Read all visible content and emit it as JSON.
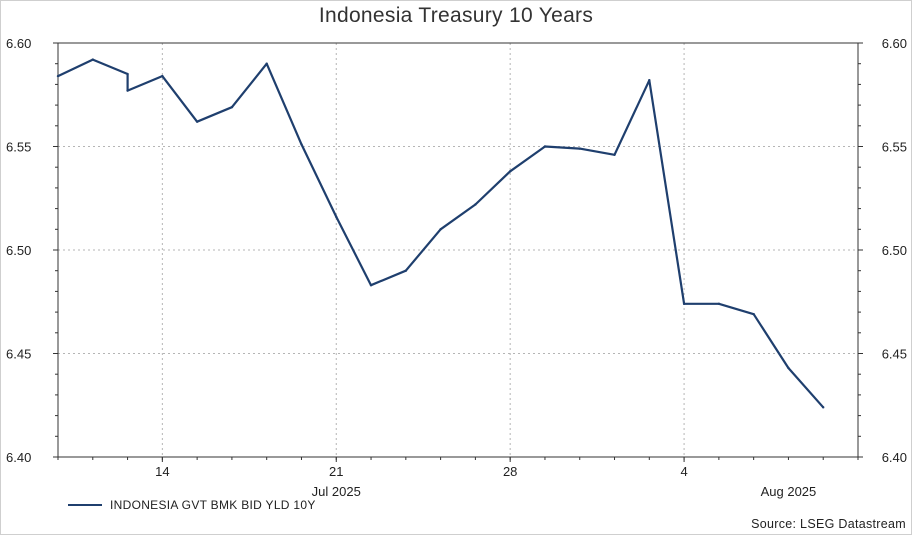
{
  "chart_data": {
    "type": "line",
    "title": "Indonesia Treasury 10 Years",
    "y_ticks": [
      "6.40",
      "6.45",
      "6.50",
      "6.55",
      "6.60"
    ],
    "ylim": [
      6.4,
      6.6
    ],
    "x_ticks": [
      {
        "label": "14",
        "date": "2025-07-14"
      },
      {
        "label": "21",
        "date": "2025-07-21"
      },
      {
        "label": "28",
        "date": "2025-07-28"
      },
      {
        "label": "4",
        "date": "2025-08-04"
      }
    ],
    "month_labels": [
      {
        "label": "Jul 2025",
        "date": "2025-07-21"
      },
      {
        "label": "Aug 2025",
        "date": "2025-08-07"
      }
    ],
    "xlim": [
      "2025-07-09",
      "2025-08-11"
    ],
    "grid": true,
    "legend_position": "bottom-left",
    "series": [
      {
        "name": "INDONESIA GVT BMK BID YLD 10Y",
        "color": "#1f3f6e",
        "points": [
          {
            "x": "2025-07-09",
            "y": 6.584
          },
          {
            "x": "2025-07-10",
            "y": 6.592
          },
          {
            "x": "2025-07-11",
            "y": 6.585
          },
          {
            "x": "2025-07-12",
            "y": 6.577
          },
          {
            "x": "2025-07-14",
            "y": 6.584
          },
          {
            "x": "2025-07-15",
            "y": 6.562
          },
          {
            "x": "2025-07-16",
            "y": 6.569
          },
          {
            "x": "2025-07-17",
            "y": 6.59
          },
          {
            "x": "2025-07-18",
            "y": 6.551
          },
          {
            "x": "2025-07-21",
            "y": 6.516
          },
          {
            "x": "2025-07-22",
            "y": 6.483
          },
          {
            "x": "2025-07-23",
            "y": 6.49
          },
          {
            "x": "2025-07-24",
            "y": 6.51
          },
          {
            "x": "2025-07-25",
            "y": 6.522
          },
          {
            "x": "2025-07-28",
            "y": 6.538
          },
          {
            "x": "2025-07-29",
            "y": 6.55
          },
          {
            "x": "2025-07-30",
            "y": 6.549
          },
          {
            "x": "2025-07-31",
            "y": 6.546
          },
          {
            "x": "2025-08-01",
            "y": 6.582
          },
          {
            "x": "2025-08-04",
            "y": 6.474
          },
          {
            "x": "2025-08-05",
            "y": 6.474
          },
          {
            "x": "2025-08-06",
            "y": 6.469
          },
          {
            "x": "2025-08-07",
            "y": 6.443
          },
          {
            "x": "2025-08-08",
            "y": 6.424
          }
        ]
      }
    ],
    "source": "Source: LSEG Datastream"
  }
}
